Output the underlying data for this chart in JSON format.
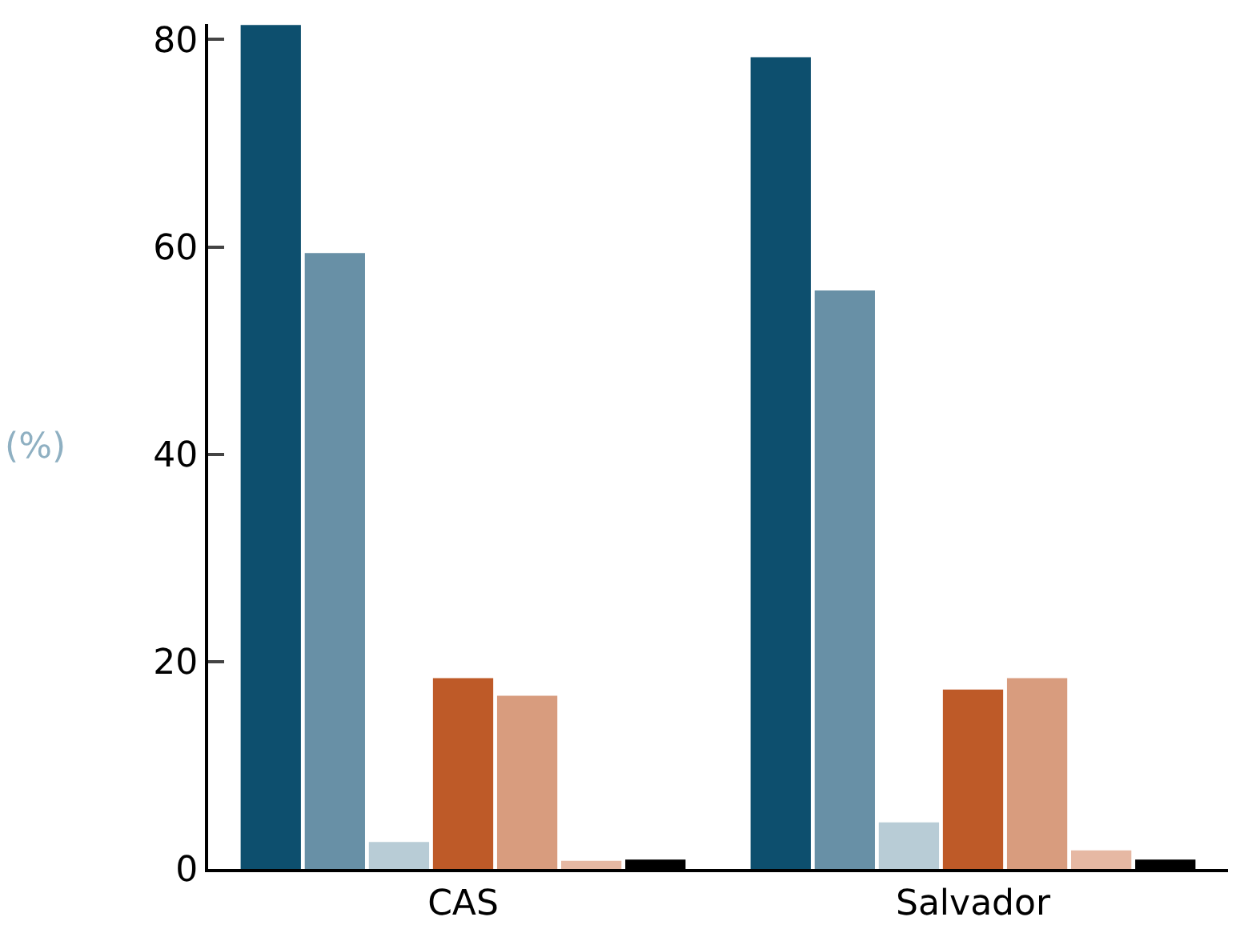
{
  "chart_data": {
    "type": "bar",
    "ylabel": "(%)",
    "categories": [
      "CAS",
      "Salvador"
    ],
    "series": [
      {
        "color": "#0d4f6e",
        "values": [
          81.4,
          78.3
        ]
      },
      {
        "color": "#6890a6",
        "values": [
          59.4,
          55.8
        ]
      },
      {
        "color": "#b8ccd6",
        "values": [
          2.6,
          4.5
        ]
      },
      {
        "color": "#be5a28",
        "values": [
          18.4,
          17.3
        ]
      },
      {
        "color": "#d89c7e",
        "values": [
          16.7,
          18.4
        ]
      },
      {
        "color": "#e6b8a3",
        "values": [
          0.8,
          1.8
        ]
      },
      {
        "color": "#000000",
        "values": [
          0.9,
          0.9
        ]
      }
    ],
    "ylim": [
      0,
      81.5
    ],
    "yticks": [
      0,
      20,
      40,
      60,
      80
    ]
  }
}
